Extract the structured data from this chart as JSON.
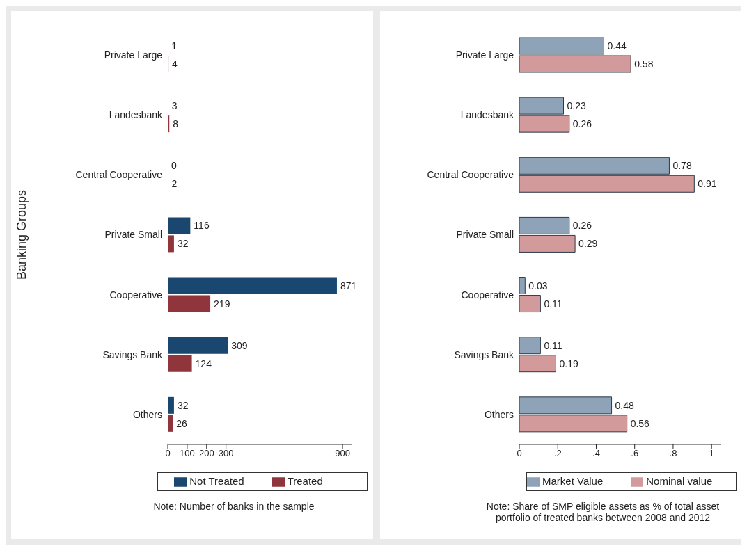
{
  "chart_data": [
    {
      "type": "bar",
      "orientation": "horizontal",
      "ylabel": "Banking Groups",
      "categories": [
        "Private Large",
        "Landesbank",
        "Central Cooperative",
        "Private Small",
        "Cooperative",
        "Savings Bank",
        "Others"
      ],
      "series": [
        {
          "name": "Not Treated",
          "color": "#1a476f",
          "values": [
            1,
            3,
            0,
            116,
            871,
            309,
            32
          ]
        },
        {
          "name": "Treated",
          "color": "#90353b",
          "values": [
            4,
            8,
            2,
            32,
            219,
            124,
            26
          ]
        }
      ],
      "xlim": [
        0,
        950
      ],
      "xticks": [
        0,
        100,
        200,
        300,
        900
      ],
      "data_labels": true,
      "legend": "bottom",
      "grid": false,
      "annotations": [
        "Note: Number of banks in the sample"
      ]
    },
    {
      "type": "bar",
      "orientation": "horizontal",
      "categories": [
        "Private Large",
        "Landesbank",
        "Central Cooperative",
        "Private Small",
        "Cooperative",
        "Savings Bank",
        "Others"
      ],
      "series": [
        {
          "name": "Market Value",
          "color": "#8fa3b8",
          "values": [
            0.44,
            0.23,
            0.78,
            0.26,
            0.03,
            0.11,
            0.48
          ]
        },
        {
          "name": "Nominal value",
          "color": "#d39a9c",
          "values": [
            0.58,
            0.26,
            0.91,
            0.29,
            0.11,
            0.19,
            0.56
          ]
        }
      ],
      "xlim": [
        0,
        1.05
      ],
      "xticks": [
        0,
        {
          "value": 0.2,
          "label": ".2"
        },
        {
          "value": 0.4,
          "label": ".4"
        },
        {
          "value": 0.6,
          "label": ".6"
        },
        {
          "value": 0.8,
          "label": ".8"
        },
        1
      ],
      "data_labels": true,
      "legend": "bottom",
      "grid": false,
      "annotations": [
        "Note: Share of SMP eligible assets as % of total asset portfolio of treated banks between 2008 and 2012"
      ]
    }
  ]
}
